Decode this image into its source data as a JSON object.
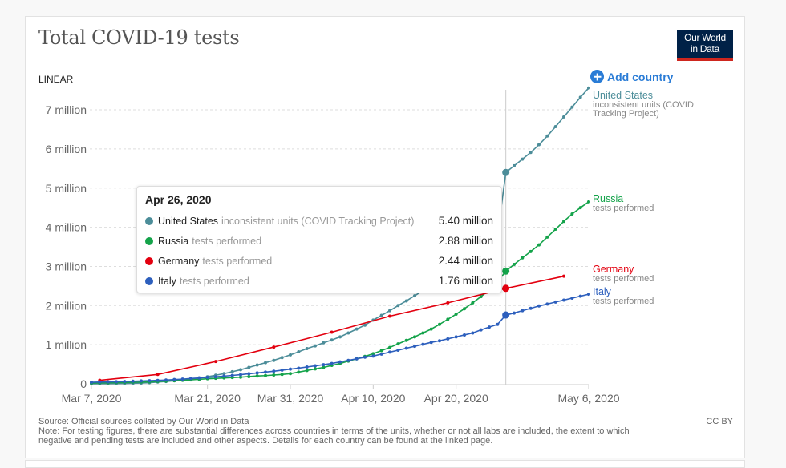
{
  "header": {
    "title": "Total COVID-19 tests",
    "logo_line1": "Our World",
    "logo_line2": "in Data"
  },
  "controls": {
    "scale_toggle": "LINEAR",
    "add_country": "Add country"
  },
  "colors": {
    "united_states": "#4c8d99",
    "russia": "#14a34a",
    "germany": "#e3000f",
    "italy": "#2d5fbd",
    "accent": "#2a7cd6",
    "logo_bg": "#002147",
    "logo_bar": "#ce261e"
  },
  "tooltip": {
    "date": "Apr 26, 2020",
    "rows": [
      {
        "name": "United States",
        "unit": "inconsistent units (COVID Tracking Project)",
        "value": "5.40 million",
        "color": "#4c8d99"
      },
      {
        "name": "Russia",
        "unit": "tests performed",
        "value": "2.88 million",
        "color": "#14a34a"
      },
      {
        "name": "Germany",
        "unit": "tests performed",
        "value": "2.44 million",
        "color": "#e3000f"
      },
      {
        "name": "Italy",
        "unit": "tests performed",
        "value": "1.76 million",
        "color": "#2d5fbd"
      }
    ]
  },
  "chart_data": {
    "type": "line",
    "title": "Total COVID-19 tests",
    "xlabel": "",
    "ylabel": "",
    "x_unit": "days since Mar 7, 2020",
    "xlim": [
      0,
      60
    ],
    "ylim": [
      0,
      7500000
    ],
    "y_ticks": [
      0,
      1000000,
      2000000,
      3000000,
      4000000,
      5000000,
      6000000,
      7000000
    ],
    "y_tick_labels": [
      "0",
      "1 million",
      "2 million",
      "3 million",
      "4 million",
      "5 million",
      "6 million",
      "7 million"
    ],
    "x_ticks": [
      0,
      14,
      24,
      34,
      44,
      60
    ],
    "x_tick_labels": [
      "Mar 7, 2020",
      "Mar 21, 2020",
      "Mar 31, 2020",
      "Apr 10, 2020",
      "Apr 20, 2020",
      "May 6, 2020"
    ],
    "grid": "horizontal-dashed",
    "legend": "right-inline-labels",
    "hover_x": 50,
    "series": [
      {
        "name": "United States",
        "unit": "inconsistent units (COVID Tracking Project)",
        "color": "#4c8d99",
        "x": [
          0,
          1,
          2,
          3,
          4,
          5,
          6,
          7,
          8,
          9,
          10,
          11,
          12,
          13,
          14,
          15,
          16,
          17,
          18,
          19,
          20,
          21,
          22,
          23,
          24,
          25,
          26,
          27,
          28,
          29,
          30,
          31,
          32,
          33,
          34,
          35,
          36,
          37,
          38,
          39,
          40,
          41,
          42,
          43,
          44,
          45,
          46,
          47,
          48,
          49,
          50,
          51,
          52,
          53,
          54,
          55,
          56,
          57,
          58,
          59,
          60
        ],
        "values": [
          2000,
          3000,
          4000,
          6000,
          9000,
          14000,
          20000,
          30000,
          45000,
          60000,
          80000,
          100000,
          120000,
          150000,
          180000,
          220000,
          260000,
          310000,
          360000,
          420000,
          480000,
          540000,
          600000,
          670000,
          740000,
          820000,
          900000,
          970000,
          1050000,
          1120000,
          1200000,
          1300000,
          1400000,
          1500000,
          1630000,
          1750000,
          1870000,
          2000000,
          2120000,
          2250000,
          2380000,
          2510000,
          2640000,
          2770000,
          2900000,
          3050000,
          3200000,
          3400000,
          3600000,
          3800000,
          5400000,
          5570000,
          5740000,
          5910000,
          6110000,
          6330000,
          6570000,
          6820000,
          7070000,
          7320000,
          7560000
        ]
      },
      {
        "name": "Russia",
        "unit": "tests performed",
        "color": "#14a34a",
        "x": [
          0,
          1,
          2,
          3,
          4,
          5,
          6,
          7,
          8,
          9,
          10,
          11,
          12,
          13,
          14,
          15,
          16,
          17,
          18,
          19,
          20,
          21,
          22,
          23,
          24,
          25,
          26,
          27,
          28,
          29,
          30,
          31,
          32,
          33,
          34,
          35,
          36,
          37,
          38,
          39,
          40,
          41,
          42,
          43,
          44,
          45,
          46,
          47,
          48,
          49,
          50,
          51,
          52,
          53,
          54,
          55,
          56,
          57,
          58,
          59,
          60
        ],
        "values": [
          20000,
          23000,
          26000,
          30000,
          35000,
          40000,
          45000,
          50000,
          60000,
          70000,
          80000,
          90000,
          100000,
          115000,
          130000,
          140000,
          150000,
          160000,
          170000,
          185000,
          200000,
          210000,
          225000,
          240000,
          260000,
          300000,
          340000,
          380000,
          420000,
          470000,
          520000,
          580000,
          640000,
          700000,
          770000,
          850000,
          930000,
          1020000,
          1110000,
          1200000,
          1300000,
          1400000,
          1520000,
          1650000,
          1780000,
          1920000,
          2070000,
          2230000,
          2400000,
          2600000,
          2880000,
          3050000,
          3220000,
          3380000,
          3550000,
          3750000,
          3950000,
          4150000,
          4340000,
          4500000,
          4650000
        ]
      },
      {
        "name": "Germany",
        "unit": "tests performed",
        "color": "#e3000f",
        "x": [
          1,
          8,
          15,
          22,
          29,
          36,
          43,
          50,
          57
        ],
        "values": [
          90000,
          240000,
          570000,
          940000,
          1320000,
          1730000,
          2070000,
          2440000,
          2750000
        ]
      },
      {
        "name": "Italy",
        "unit": "tests performed",
        "color": "#2d5fbd",
        "x": [
          0,
          1,
          2,
          3,
          4,
          5,
          6,
          7,
          8,
          9,
          10,
          11,
          12,
          13,
          14,
          15,
          16,
          17,
          18,
          19,
          20,
          21,
          22,
          23,
          24,
          25,
          26,
          27,
          28,
          29,
          30,
          31,
          32,
          33,
          34,
          35,
          36,
          37,
          38,
          39,
          40,
          41,
          42,
          43,
          44,
          45,
          46,
          47,
          48,
          49,
          50,
          51,
          52,
          53,
          54,
          55,
          56,
          57,
          58,
          59,
          60
        ],
        "values": [
          40000,
          45000,
          50000,
          55000,
          60000,
          66000,
          73000,
          80000,
          88000,
          97000,
          109000,
          120000,
          137000,
          150000,
          165000,
          180000,
          197000,
          215000,
          234000,
          258000,
          278000,
          300000,
          322000,
          350000,
          375000,
          400000,
          430000,
          460000,
          490000,
          520000,
          560000,
          600000,
          640000,
          680000,
          710000,
          760000,
          810000,
          860000,
          910000,
          960000,
          1010000,
          1060000,
          1100000,
          1150000,
          1200000,
          1250000,
          1300000,
          1380000,
          1450000,
          1520000,
          1760000,
          1810000,
          1870000,
          1930000,
          1990000,
          2040000,
          2090000,
          2140000,
          2190000,
          2240000,
          2290000
        ]
      }
    ]
  },
  "series_labels": [
    {
      "name": "United States",
      "sub": "inconsistent units (COVID",
      "sub2": "Tracking Project)"
    },
    {
      "name": "Russia",
      "sub": "tests performed"
    },
    {
      "name": "Germany",
      "sub": "tests performed"
    },
    {
      "name": "Italy",
      "sub": "tests performed"
    }
  ],
  "footer": {
    "source": "Source: Official sources collated by Our World in Data",
    "license": "CC BY",
    "note_line1": "Note: For testing figures, there are substantial differences across countries in terms of the units, whether or not all labs are included, the extent to which",
    "note_line2": "negative and pending tests are included and other aspects. Details for each country can be found at the linked page."
  }
}
